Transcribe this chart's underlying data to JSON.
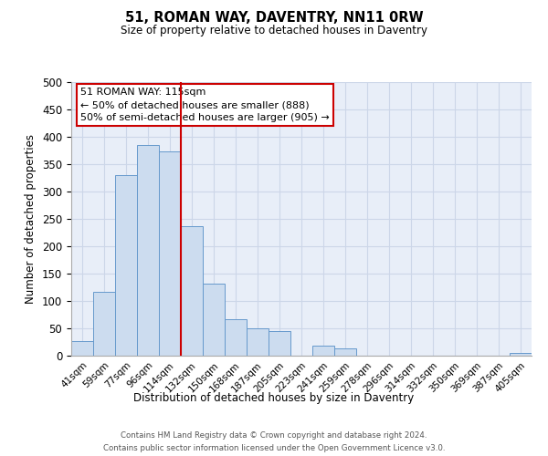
{
  "title": "51, ROMAN WAY, DAVENTRY, NN11 0RW",
  "subtitle": "Size of property relative to detached houses in Daventry",
  "xlabel": "Distribution of detached houses by size in Daventry",
  "ylabel": "Number of detached properties",
  "bar_labels": [
    "41sqm",
    "59sqm",
    "77sqm",
    "96sqm",
    "114sqm",
    "132sqm",
    "150sqm",
    "168sqm",
    "187sqm",
    "205sqm",
    "223sqm",
    "241sqm",
    "259sqm",
    "278sqm",
    "296sqm",
    "314sqm",
    "332sqm",
    "350sqm",
    "369sqm",
    "387sqm",
    "405sqm"
  ],
  "bar_values": [
    27,
    117,
    330,
    385,
    373,
    236,
    132,
    67,
    50,
    45,
    0,
    18,
    13,
    0,
    0,
    0,
    0,
    0,
    0,
    0,
    5
  ],
  "bar_color": "#ccdcef",
  "bar_edge_color": "#6699cc",
  "vline_x_index": 4,
  "vline_color": "#cc0000",
  "annotation_title": "51 ROMAN WAY: 115sqm",
  "annotation_line1": "← 50% of detached houses are smaller (888)",
  "annotation_line2": "50% of semi-detached houses are larger (905) →",
  "annotation_box_color": "#cc0000",
  "ylim": [
    0,
    500
  ],
  "yticks": [
    0,
    50,
    100,
    150,
    200,
    250,
    300,
    350,
    400,
    450,
    500
  ],
  "grid_color": "#ccd6e8",
  "footnote1": "Contains HM Land Registry data © Crown copyright and database right 2024.",
  "footnote2": "Contains public sector information licensed under the Open Government Licence v3.0.",
  "background_color": "#e8eef8"
}
